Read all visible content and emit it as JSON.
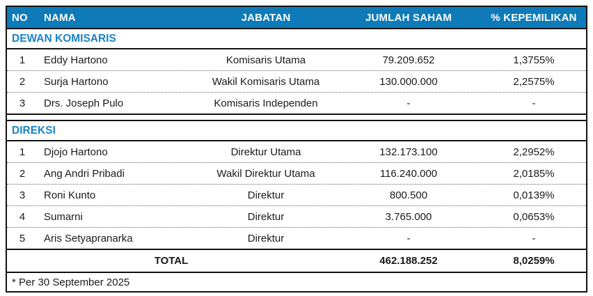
{
  "table": {
    "columns": [
      "NO",
      "NAMA",
      "JABATAN",
      "JUMLAH SAHAM",
      "% KEPEMILIKAN"
    ],
    "sections": [
      {
        "title": "DEWAN KOMISARIS",
        "rows": [
          {
            "no": "1",
            "nama": "Eddy Hartono",
            "jabatan": "Komisaris Utama",
            "jumlah_saham": "79.209.652",
            "kepemilikan": "1,3755%"
          },
          {
            "no": "2",
            "nama": "Surja Hartono",
            "jabatan": "Wakil Komisaris Utama",
            "jumlah_saham": "130.000.000",
            "kepemilikan": "2,2575%"
          },
          {
            "no": "3",
            "nama": "Drs. Joseph Pulo",
            "jabatan": "Komisaris Independen",
            "jumlah_saham": "-",
            "kepemilikan": "-"
          }
        ]
      },
      {
        "title": "DIREKSI",
        "rows": [
          {
            "no": "1",
            "nama": "Djojo Hartono",
            "jabatan": "Direktur Utama",
            "jumlah_saham": "132.173.100",
            "kepemilikan": "2,2952%"
          },
          {
            "no": "2",
            "nama": "Ang Andri Pribadi",
            "jabatan": "Wakil Direktur Utama",
            "jumlah_saham": "116.240.000",
            "kepemilikan": "2,0185%"
          },
          {
            "no": "3",
            "nama": "Roni Kunto",
            "jabatan": "Direktur",
            "jumlah_saham": "800.500",
            "kepemilikan": "0,0139%"
          },
          {
            "no": "4",
            "nama": "Sumarni",
            "jabatan": "Direktur",
            "jumlah_saham": "3.765.000",
            "kepemilikan": "0,0653%"
          },
          {
            "no": "5",
            "nama": "Aris Setyapranarka",
            "jabatan": "Direktur",
            "jumlah_saham": "-",
            "kepemilikan": "-"
          }
        ]
      }
    ],
    "total": {
      "label": "TOTAL",
      "jumlah_saham": "462.188.252",
      "kepemilikan": "8,0259%"
    },
    "footnote": "* Per 30 September 2025",
    "colors": {
      "header_bg": "#0e7bb8",
      "section_title_text": "#1a82c4",
      "border": "#111111",
      "text": "#1a1a1a"
    }
  }
}
